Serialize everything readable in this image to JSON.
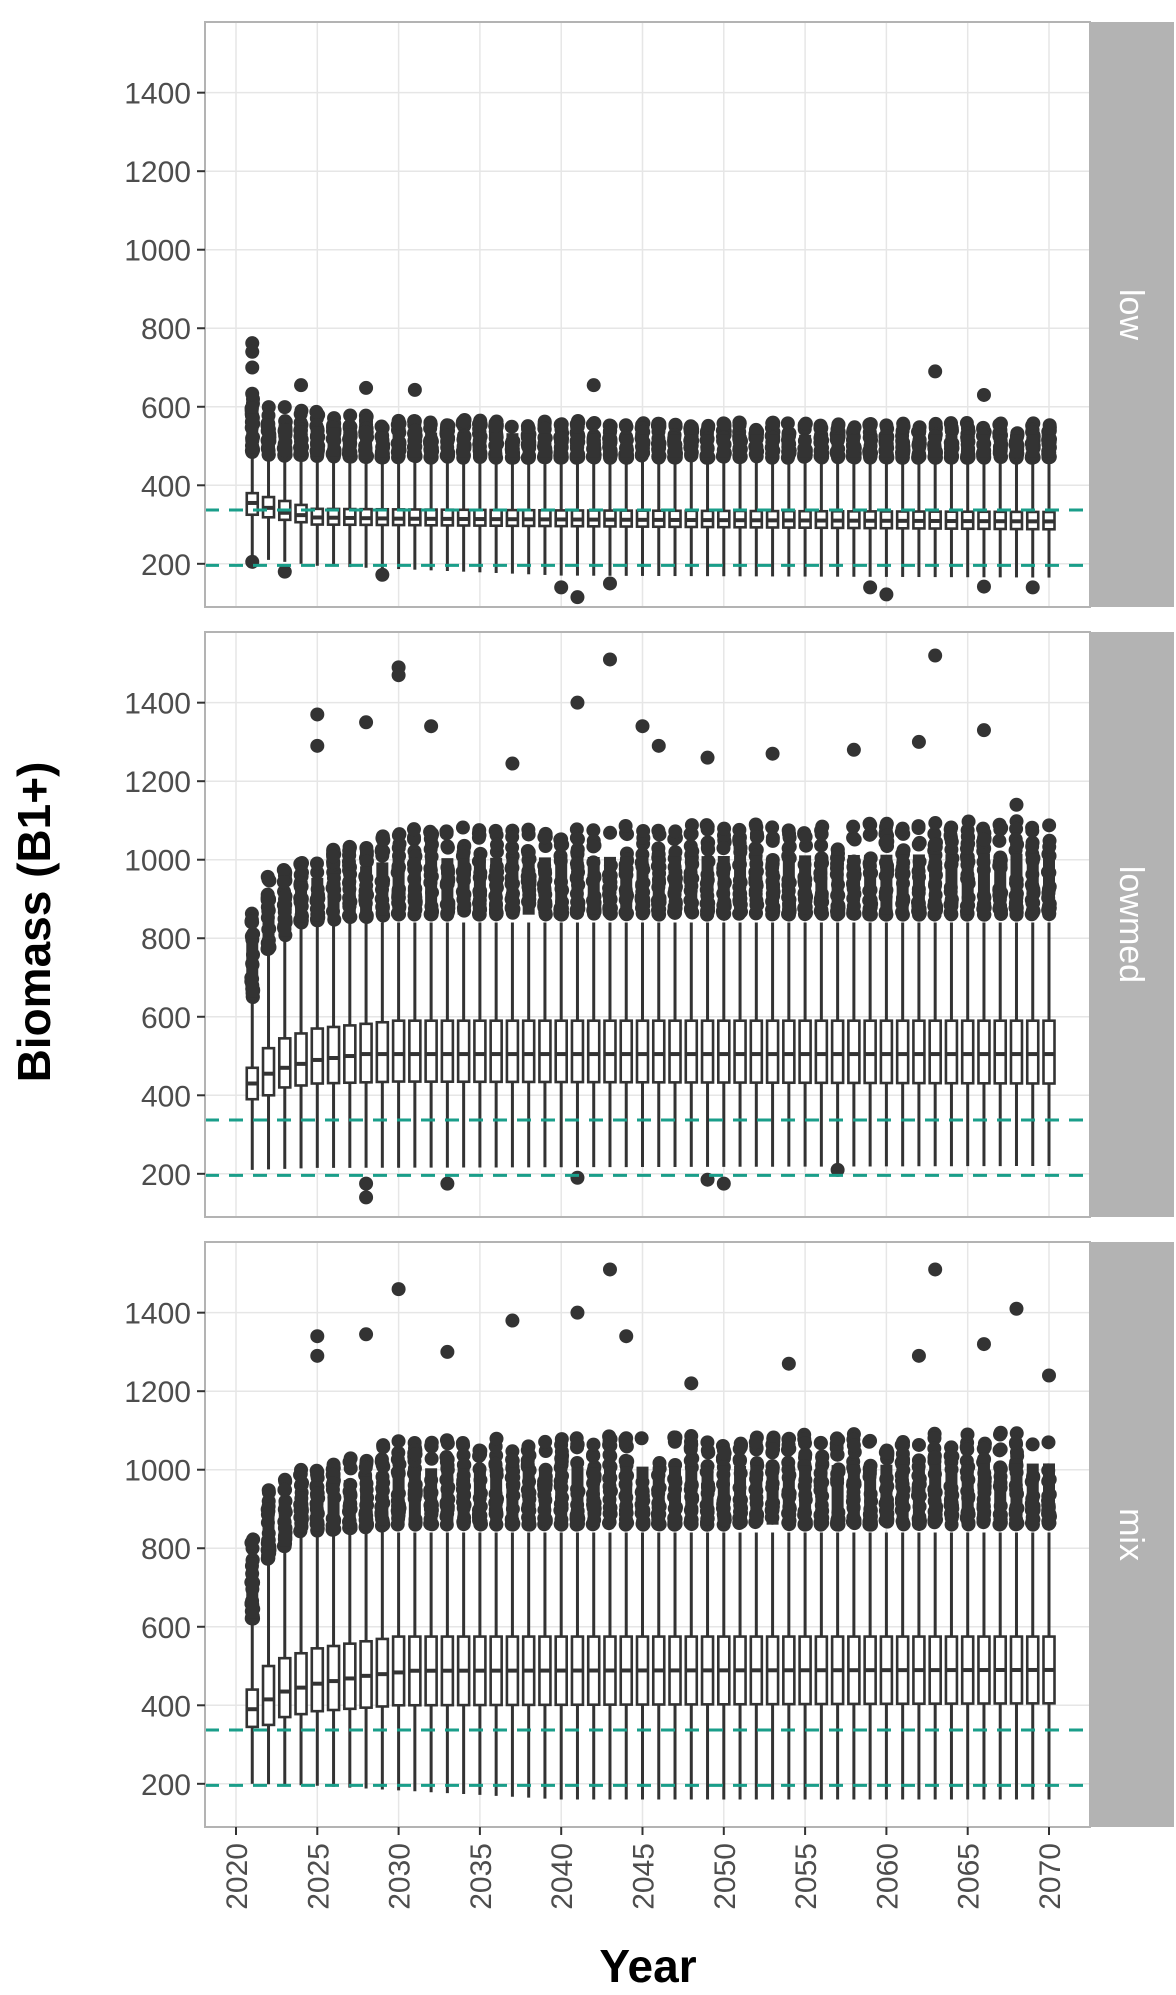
{
  "chart_data": {
    "type": "boxplot",
    "xlabel": "Year",
    "ylabel": "Biomass (B1+)",
    "x_range": [
      2020,
      2070
    ],
    "x_ticks": [
      2020,
      2025,
      2030,
      2035,
      2040,
      2045,
      2050,
      2055,
      2060,
      2065,
      2070
    ],
    "y_range": [
      90,
      1580
    ],
    "y_ticks": [
      200,
      400,
      600,
      800,
      1000,
      1200,
      1400
    ],
    "reference_lines": [
      196,
      337
    ],
    "colors": {
      "box": "#333333",
      "reference": "#1a9e8a",
      "strip": "#b3b3b3",
      "grid": "#e6e6e6"
    },
    "years": {
      "start": 2021,
      "end": 2070
    },
    "panels": [
      {
        "label": "low",
        "median": [
          [
            2021,
            355
          ],
          [
            2023,
            330
          ],
          [
            2025,
            318
          ],
          [
            2030,
            315
          ],
          [
            2045,
            312
          ],
          [
            2070,
            308
          ]
        ],
        "q1": [
          [
            2021,
            325
          ],
          [
            2023,
            312
          ],
          [
            2025,
            300
          ],
          [
            2040,
            296
          ],
          [
            2070,
            288
          ]
        ],
        "q3": [
          [
            2021,
            380
          ],
          [
            2023,
            360
          ],
          [
            2025,
            340
          ],
          [
            2040,
            336
          ],
          [
            2070,
            332
          ]
        ],
        "lower_whisker": [
          [
            2021,
            215
          ],
          [
            2025,
            195
          ],
          [
            2040,
            170
          ],
          [
            2070,
            165
          ]
        ],
        "upper_whisker": [
          [
            2021,
            470
          ],
          [
            2025,
            465
          ],
          [
            2070,
            460
          ]
        ],
        "outlier_band": [
          [
            2021,
            480,
            640
          ],
          [
            2023,
            475,
            600
          ],
          [
            2030,
            470,
            570
          ],
          [
            2050,
            470,
            560
          ],
          [
            2070,
            470,
            560
          ]
        ],
        "high_outliers": [
          [
            2021,
            762
          ],
          [
            2021,
            740
          ],
          [
            2021,
            700
          ],
          [
            2024,
            655
          ],
          [
            2028,
            648
          ],
          [
            2031,
            643
          ],
          [
            2042,
            655
          ],
          [
            2063,
            690
          ],
          [
            2066,
            630
          ]
        ],
        "low_outliers": [
          [
            2021,
            205
          ],
          [
            2023,
            180
          ],
          [
            2029,
            172
          ],
          [
            2040,
            140
          ],
          [
            2041,
            115
          ],
          [
            2043,
            150
          ],
          [
            2059,
            140
          ],
          [
            2060,
            122
          ],
          [
            2066,
            142
          ],
          [
            2069,
            140
          ]
        ]
      },
      {
        "label": "lowmed",
        "median": [
          [
            2021,
            430
          ],
          [
            2022,
            455
          ],
          [
            2023,
            470
          ],
          [
            2025,
            490
          ],
          [
            2028,
            505
          ],
          [
            2070,
            505
          ]
        ],
        "q1": [
          [
            2021,
            390
          ],
          [
            2022,
            400
          ],
          [
            2023,
            420
          ],
          [
            2025,
            430
          ],
          [
            2030,
            435
          ],
          [
            2070,
            430
          ]
        ],
        "q3": [
          [
            2021,
            470
          ],
          [
            2022,
            520
          ],
          [
            2023,
            545
          ],
          [
            2025,
            570
          ],
          [
            2030,
            590
          ],
          [
            2070,
            590
          ]
        ],
        "lower_whisker": [
          [
            2021,
            210
          ],
          [
            2025,
            215
          ],
          [
            2070,
            220
          ]
        ],
        "upper_whisker": [
          [
            2021,
            640
          ],
          [
            2022,
            760
          ],
          [
            2024,
            830
          ],
          [
            2027,
            840
          ],
          [
            2070,
            840
          ]
        ],
        "outlier_band": [
          [
            2021,
            650,
            880
          ],
          [
            2022,
            770,
            960
          ],
          [
            2024,
            840,
            1000
          ],
          [
            2027,
            850,
            1040
          ],
          [
            2030,
            860,
            1080
          ],
          [
            2070,
            860,
            1100
          ]
        ],
        "high_outliers": [
          [
            2025,
            1370
          ],
          [
            2025,
            1290
          ],
          [
            2028,
            1350
          ],
          [
            2030,
            1490
          ],
          [
            2030,
            1470
          ],
          [
            2032,
            1340
          ],
          [
            2037,
            1245
          ],
          [
            2041,
            1400
          ],
          [
            2043,
            1510
          ],
          [
            2045,
            1340
          ],
          [
            2046,
            1290
          ],
          [
            2049,
            1260
          ],
          [
            2053,
            1270
          ],
          [
            2058,
            1280
          ],
          [
            2062,
            1300
          ],
          [
            2063,
            1520
          ],
          [
            2066,
            1330
          ],
          [
            2068,
            1140
          ]
        ],
        "low_outliers": [
          [
            2028,
            175
          ],
          [
            2028,
            140
          ],
          [
            2033,
            175
          ],
          [
            2041,
            190
          ],
          [
            2049,
            185
          ],
          [
            2050,
            175
          ],
          [
            2057,
            210
          ]
        ]
      },
      {
        "label": "mix",
        "median": [
          [
            2021,
            390
          ],
          [
            2022,
            415
          ],
          [
            2023,
            435
          ],
          [
            2025,
            455
          ],
          [
            2028,
            475
          ],
          [
            2031,
            488
          ],
          [
            2070,
            490
          ]
        ],
        "q1": [
          [
            2021,
            345
          ],
          [
            2022,
            350
          ],
          [
            2023,
            370
          ],
          [
            2025,
            385
          ],
          [
            2030,
            400
          ],
          [
            2070,
            405
          ]
        ],
        "q3": [
          [
            2021,
            440
          ],
          [
            2022,
            500
          ],
          [
            2023,
            520
          ],
          [
            2025,
            545
          ],
          [
            2030,
            575
          ],
          [
            2070,
            575
          ]
        ],
        "lower_whisker": [
          [
            2021,
            200
          ],
          [
            2025,
            195
          ],
          [
            2040,
            160
          ],
          [
            2070,
            160
          ]
        ],
        "upper_whisker": [
          [
            2021,
            610
          ],
          [
            2022,
            760
          ],
          [
            2024,
            830
          ],
          [
            2027,
            840
          ],
          [
            2070,
            840
          ]
        ],
        "outlier_band": [
          [
            2021,
            620,
            860
          ],
          [
            2022,
            770,
            960
          ],
          [
            2024,
            840,
            1000
          ],
          [
            2027,
            850,
            1040
          ],
          [
            2030,
            860,
            1080
          ],
          [
            2070,
            860,
            1100
          ]
        ],
        "high_outliers": [
          [
            2025,
            1340
          ],
          [
            2025,
            1290
          ],
          [
            2028,
            1345
          ],
          [
            2030,
            1460
          ],
          [
            2033,
            1300
          ],
          [
            2037,
            1380
          ],
          [
            2041,
            1400
          ],
          [
            2043,
            1510
          ],
          [
            2044,
            1340
          ],
          [
            2048,
            1220
          ],
          [
            2054,
            1270
          ],
          [
            2062,
            1290
          ],
          [
            2063,
            1510
          ],
          [
            2066,
            1320
          ],
          [
            2068,
            1410
          ],
          [
            2070,
            1240
          ]
        ],
        "low_outliers": []
      }
    ]
  }
}
